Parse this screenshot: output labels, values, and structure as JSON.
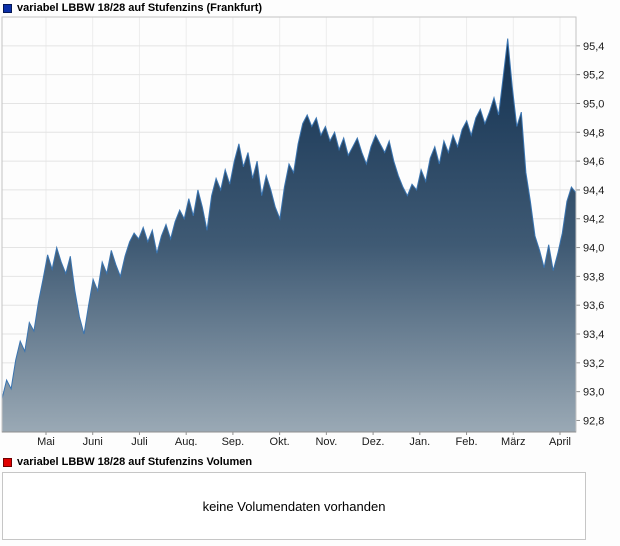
{
  "price_legend": {
    "label": "variabel LBBW 18/28 auf Stufenzins (Frankfurt)",
    "color": "#0b2fa8"
  },
  "volume_legend": {
    "label": "variabel LBBW 18/28 auf Stufenzins Volumen",
    "color": "#e00000"
  },
  "volume_panel": {
    "message": "keine Volumendaten vorhanden"
  },
  "chart_data": {
    "type": "area",
    "title": "variabel LBBW 18/28 auf Stufenzins (Frankfurt)",
    "xlabel": "",
    "ylabel": "",
    "y_axis_side": "right",
    "grid": true,
    "legend_position": "top-left",
    "x_tick_labels": [
      "Mai",
      "Juni",
      "Juli",
      "Aug.",
      "Sep.",
      "Okt.",
      "Nov.",
      "Dez.",
      "Jan.",
      "Feb.",
      "März",
      "April"
    ],
    "y_ticks": [
      92.8,
      93.0,
      93.2,
      93.4,
      93.6,
      93.8,
      94.0,
      94.2,
      94.4,
      94.6,
      94.8,
      95.0,
      95.2,
      95.4
    ],
    "y_tick_labels": [
      "92,8",
      "93,0",
      "93,2",
      "93,4",
      "93,6",
      "93,8",
      "94,0",
      "94,2",
      "94,4",
      "94,6",
      "94,8",
      "95,0",
      "95,2",
      "95,4"
    ],
    "ylim": [
      92.72,
      95.6
    ],
    "line_color": "#3a74b0",
    "fill_top": "#0d2c4d",
    "fill_mid": "#3f5a74",
    "fill_bottom": "#9aa9b5",
    "values": [
      92.95,
      93.08,
      93.02,
      93.22,
      93.35,
      93.28,
      93.48,
      93.42,
      93.62,
      93.78,
      93.95,
      93.85,
      94.0,
      93.9,
      93.82,
      93.94,
      93.7,
      93.52,
      93.4,
      93.6,
      93.78,
      93.7,
      93.9,
      93.82,
      93.98,
      93.88,
      93.8,
      93.94,
      94.04,
      94.1,
      94.06,
      94.14,
      94.04,
      94.12,
      93.96,
      94.08,
      94.16,
      94.06,
      94.18,
      94.26,
      94.2,
      94.34,
      94.22,
      94.4,
      94.28,
      94.12,
      94.36,
      94.48,
      94.4,
      94.54,
      94.44,
      94.6,
      94.72,
      94.56,
      94.66,
      94.48,
      94.6,
      94.36,
      94.5,
      94.4,
      94.28,
      94.2,
      94.42,
      94.58,
      94.52,
      94.72,
      94.86,
      94.92,
      94.84,
      94.9,
      94.78,
      94.84,
      94.74,
      94.8,
      94.68,
      94.76,
      94.64,
      94.7,
      94.76,
      94.66,
      94.58,
      94.7,
      94.78,
      94.72,
      94.66,
      94.74,
      94.6,
      94.5,
      94.42,
      94.36,
      94.44,
      94.4,
      94.54,
      94.46,
      94.62,
      94.7,
      94.58,
      94.74,
      94.66,
      94.78,
      94.7,
      94.82,
      94.88,
      94.78,
      94.9,
      94.96,
      94.86,
      94.94,
      95.04,
      94.92,
      95.18,
      95.45,
      95.12,
      94.84,
      94.94,
      94.52,
      94.32,
      94.08,
      93.98,
      93.86,
      94.02,
      93.84,
      93.96,
      94.1,
      94.32,
      94.42,
      94.38
    ]
  }
}
